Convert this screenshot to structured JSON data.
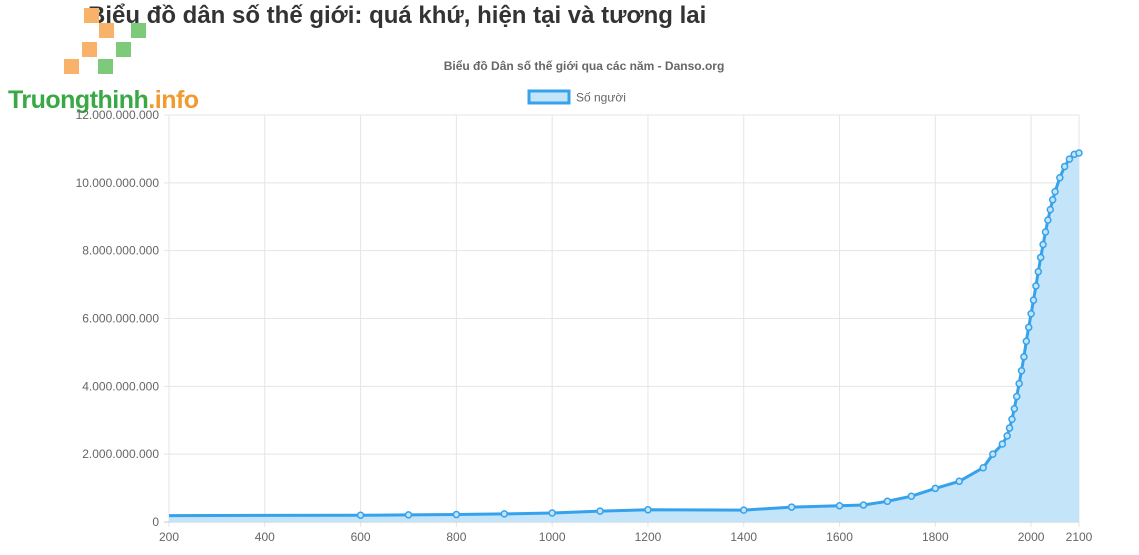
{
  "page": {
    "heading": "Biểu đồ dân số thế giới: quá khứ, hiện tại và tương lai"
  },
  "logo": {
    "brand": "Truongthinh",
    "tld": ".info",
    "colors": {
      "orange": "#f8b26a",
      "green": "#7dcb7a"
    }
  },
  "chart_data": {
    "type": "area",
    "title": "Biểu đồ Dân số thế giới qua các năm - Danso.org",
    "legend": {
      "position": "top",
      "entries": [
        "Số người"
      ]
    },
    "xlabel": "",
    "ylabel": "",
    "xlim": [
      200,
      2100
    ],
    "ylim": [
      0,
      12000000000
    ],
    "grid": true,
    "x_ticks": [
      200,
      400,
      600,
      800,
      1000,
      1200,
      1400,
      1600,
      1800,
      2000,
      2100
    ],
    "y_ticks": [
      0,
      2000000000,
      4000000000,
      6000000000,
      8000000000,
      10000000000,
      12000000000
    ],
    "y_tick_labels": [
      "0",
      "2.000.000.000",
      "4.000.000.000",
      "6.000.000.000",
      "8.000.000.000",
      "10.000.000.000",
      "12.000.000.000"
    ],
    "colors": {
      "line": "#36a2eb",
      "fill": "#c3e4f9",
      "grid": "#e5e5e5",
      "axis": "#c8c8c8"
    },
    "series": [
      {
        "name": "Số người",
        "x": [
          200,
          600,
          700,
          800,
          900,
          1000,
          1100,
          1200,
          1400,
          1500,
          1600,
          1650,
          1700,
          1750,
          1800,
          1850,
          1900,
          1920,
          1940,
          1950,
          1955,
          1960,
          1965,
          1970,
          1975,
          1980,
          1985,
          1990,
          1995,
          2000,
          2005,
          2010,
          2015,
          2020,
          2025,
          2030,
          2035,
          2040,
          2045,
          2050,
          2060,
          2070,
          2080,
          2090,
          2100
        ],
        "values": [
          190000000,
          200000000,
          210000000,
          220000000,
          240000000,
          265000000,
          320000000,
          360000000,
          350000000,
          440000000,
          480000000,
          500000000,
          610000000,
          760000000,
          990000000,
          1200000000,
          1600000000,
          2000000000,
          2300000000,
          2540000000,
          2770000000,
          3030000000,
          3340000000,
          3700000000,
          4080000000,
          4460000000,
          4870000000,
          5330000000,
          5740000000,
          6140000000,
          6540000000,
          6960000000,
          7380000000,
          7800000000,
          8180000000,
          8550000000,
          8900000000,
          9210000000,
          9500000000,
          9740000000,
          10150000000,
          10480000000,
          10700000000,
          10840000000,
          10880000000
        ]
      }
    ]
  }
}
